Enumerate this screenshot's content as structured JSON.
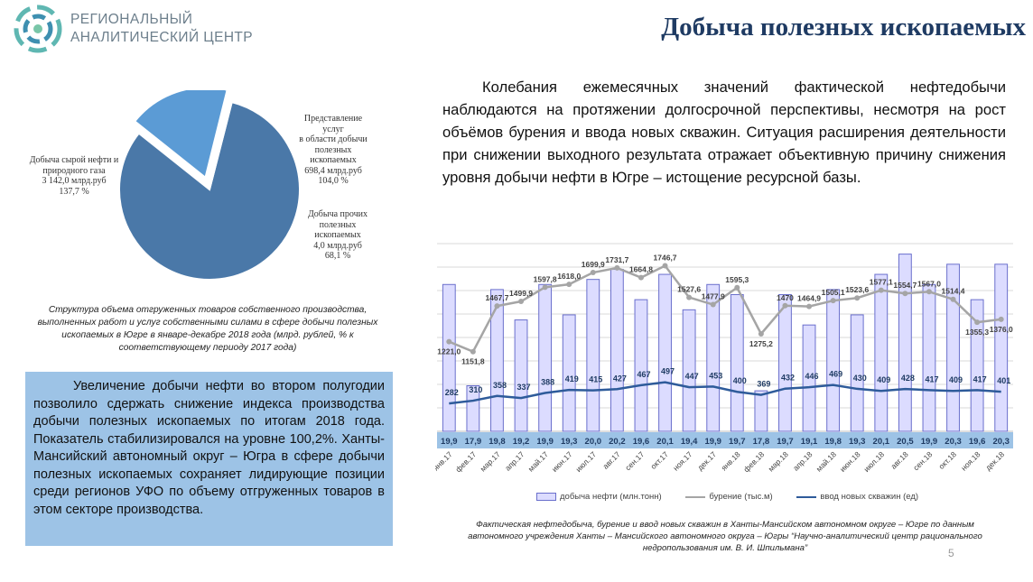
{
  "header": {
    "logo_line1": "РЕГИОНАЛЬНЫЙ",
    "logo_line2": "АНАЛИТИЧЕСКИЙ ЦЕНТР",
    "title": "Добыча полезных ископаемых"
  },
  "main_text": "Колебания ежемесячных значений фактической нефтедобычи наблюдаются на протяжении долгосрочной перспективы, несмотря на рост объёмов бурения и ввода новых скважин. Ситуация расширения деятельности при снижении выходного результата отражает объективную причину снижения уровня добычи нефти в Югре – истощение ресурсной базы.",
  "pie": {
    "label_oil": [
      "Добыча сырой нефти и",
      "природного газа",
      "3 142,0 млрд.руб",
      "137,7 %"
    ],
    "label_services": [
      "Представление услуг",
      "в области добычи",
      "полезных",
      "ископаемых",
      "698,4 млрд.руб",
      "104,0 %"
    ],
    "label_other": [
      "Добыча прочих",
      "полезных",
      "ископаемых",
      "4,0 млрд.руб",
      "68,1 %"
    ],
    "caption": "Структура объема отгруженных товаров собственного производства, выполненных работ и услуг собственными силами в сфере добычи полезных ископаемых в Югре в январе-декабре 2018 года (млрд. рублей, % к соответствующему периоду 2017 года)"
  },
  "box_text": "Увеличение добычи нефти во втором полугодии позволило сдержать снижение индекса производства добычи полезных ископаемых по итогам 2018 года. Показатель стабилизировался на уровне 100,2%. Ханты-Мансийский автономный округ – Югра в сфере добычи полезных ископаемых сохраняет лидирующие позиции среди регионов УФО по объему отгруженных товаров в этом секторе производства.",
  "chart_caption": "Фактическая нефтедобыча, бурение и ввод новых скважин в Ханты-Мансийском автономном округе – Югре по данным автономного учреждения Ханты – Мансийского автономного округа – Югры “Научно-аналитический центр рационального недропользования им. В. И. Шпильмана”",
  "page_number": "5",
  "colors": {
    "pie_main": "#4a78a8",
    "pie_services": "#5b9bd5",
    "bar_fill": "#dcdcff",
    "bar_stroke": "#6a6fcc",
    "drilling_line": "#a5a5a5",
    "wells_line": "#2e5b9a",
    "value_strip": "#9dc3e6",
    "title": "#1f3b63"
  },
  "chart_data": [
    {
      "type": "pie",
      "labels": [
        "Добыча сырой нефти и природного газа",
        "Представление услуг в области добычи полезных ископаемых",
        "Добыча прочих полезных ископаемых"
      ],
      "values": [
        3142.0,
        698.4,
        4.0
      ],
      "value_labels": [
        "3 142,0 млрд.руб",
        "698,4 млрд.руб",
        "4,0 млрд.руб"
      ],
      "percent_labels": [
        "137,7 %",
        "104,0 %",
        "68,1 %"
      ]
    },
    {
      "type": "bar+line",
      "categories": [
        "янв.17",
        "фев.17",
        "мар.17",
        "апр.17",
        "май.17",
        "июн.17",
        "июл.17",
        "авг.17",
        "сен.17",
        "окт.17",
        "ноя.17",
        "дек.17",
        "янв.18",
        "фев.18",
        "мар.18",
        "апр.18",
        "май.18",
        "июн.18",
        "июл.18",
        "авг.18",
        "сен.18",
        "окт.18",
        "ноя.18",
        "дек.18"
      ],
      "series": [
        {
          "name": "добыча нефти (млн.тонн)",
          "kind": "bar",
          "values": [
            19.9,
            17.9,
            19.8,
            19.2,
            19.9,
            19.3,
            20.0,
            20.2,
            19.6,
            20.1,
            19.4,
            19.9,
            19.7,
            17.8,
            19.7,
            19.1,
            19.8,
            19.3,
            20.1,
            20.5,
            19.9,
            20.3,
            19.6,
            20.3
          ],
          "labels": [
            "19,9",
            "17,9",
            "19,8",
            "19,2",
            "19,9",
            "19,3",
            "20,0",
            "20,2",
            "19,6",
            "20,1",
            "19,4",
            "19,9",
            "19,7",
            "17,8",
            "19,7",
            "19,1",
            "19,8",
            "19,3",
            "20,1",
            "20,5",
            "19,9",
            "20,3",
            "19,6",
            "20,3"
          ]
        },
        {
          "name": "бурение (тыс.м)",
          "kind": "line",
          "values": [
            1221.0,
            1151.8,
            1467.7,
            1499.9,
            1597.8,
            1618.0,
            1699.9,
            1731.7,
            1664.8,
            1746.7,
            1527.6,
            1477.9,
            1595.3,
            1275.2,
            1470,
            1464.9,
            1505.1,
            1523.6,
            1577.1,
            1554.7,
            1567.0,
            1514.4,
            1355.3,
            1376.0
          ],
          "labels": [
            "1221,0",
            "1151,8",
            "1467,7",
            "1499,9",
            "1597,8",
            "1618,0",
            "1699,9",
            "1731,7",
            "1664,8",
            "1746,7",
            "1527,6",
            "1477,9",
            "1595,3",
            "1275,2",
            "1470",
            "1464,9",
            "1505,1",
            "1523,6",
            "1577,1",
            "1554,7",
            "1567,0",
            "1514,4",
            "1355,3",
            "1376,0"
          ]
        },
        {
          "name": "ввод новых скважин (ед)",
          "kind": "line",
          "values": [
            282,
            310,
            358,
            337,
            388,
            419,
            415,
            427,
            467,
            497,
            447,
            453,
            400,
            369,
            432,
            446,
            469,
            430,
            409,
            428,
            417,
            409,
            417,
            401
          ],
          "labels": [
            "282",
            "310",
            "358",
            "337",
            "388",
            "419",
            "415",
            "427",
            "467",
            "497",
            "447",
            "453",
            "400",
            "369",
            "432",
            "446",
            "469",
            "430",
            "409",
            "428",
            "417",
            "409",
            "417",
            "401"
          ]
        }
      ],
      "bar_range": [
        17.0,
        20.6
      ],
      "drilling_range": [
        600,
        1900
      ],
      "wells_range": [
        0,
        1900
      ],
      "grid": true,
      "legend": "bottom"
    }
  ]
}
